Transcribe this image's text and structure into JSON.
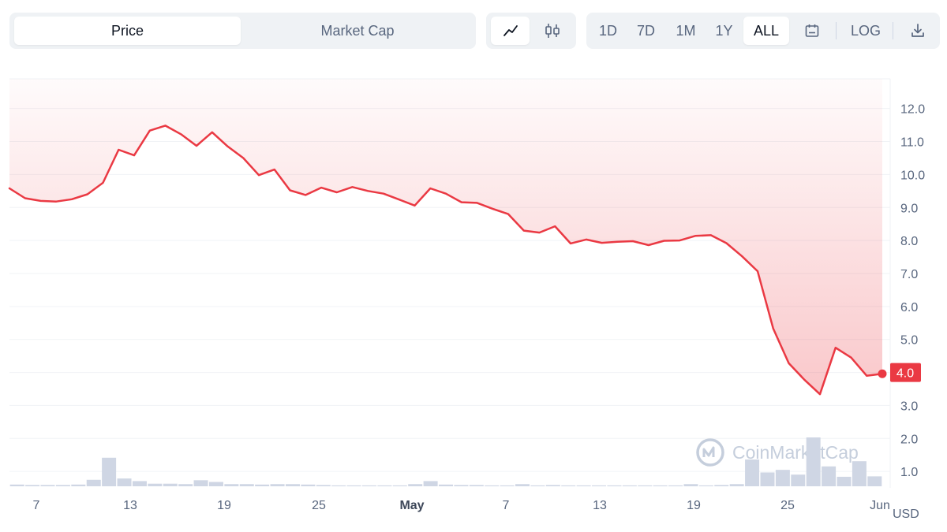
{
  "toolbar": {
    "metric_tabs": [
      {
        "label": "Price",
        "active": true
      },
      {
        "label": "Market Cap",
        "active": false
      }
    ],
    "chart_types": [
      {
        "icon": "line-chart-icon",
        "active": true
      },
      {
        "icon": "candlestick-chart-icon",
        "active": false
      }
    ],
    "ranges": [
      {
        "label": "1D",
        "active": false
      },
      {
        "label": "7D",
        "active": false
      },
      {
        "label": "1M",
        "active": false
      },
      {
        "label": "1Y",
        "active": false
      },
      {
        "label": "ALL",
        "active": true
      }
    ],
    "calendar_icon": "calendar-icon",
    "log_label": "LOG",
    "download_icon": "download-icon"
  },
  "watermark": "CoinMarketCap",
  "colors": {
    "line": "#ea3943",
    "volume": "#cfd6e4",
    "active_bg": "#ffffff",
    "toolbar_bg": "#eff2f5"
  },
  "chart_data": {
    "type": "area",
    "ylim": [
      0.55,
      12.9
    ],
    "y_ticks": [
      "1.0",
      "2.0",
      "3.0",
      "4.0",
      "5.0",
      "6.0",
      "7.0",
      "8.0",
      "9.0",
      "10.0",
      "11.0",
      "12.0"
    ],
    "y_unit": "USD",
    "x_ticks": [
      {
        "label": "7",
        "bold": false
      },
      {
        "label": "13",
        "bold": false
      },
      {
        "label": "19",
        "bold": false
      },
      {
        "label": "25",
        "bold": false
      },
      {
        "label": "May",
        "bold": true
      },
      {
        "label": "7",
        "bold": false
      },
      {
        "label": "13",
        "bold": false
      },
      {
        "label": "19",
        "bold": false
      },
      {
        "label": "25",
        "bold": false
      },
      {
        "label": "Jun",
        "bold": false
      }
    ],
    "current_price": "4.0",
    "grid": true,
    "series": [
      {
        "values": [
          9.58,
          9.28,
          9.2,
          9.18,
          9.25,
          9.4,
          9.75,
          10.75,
          10.58,
          11.33,
          11.48,
          11.22,
          10.87,
          11.28,
          10.85,
          10.5,
          9.98,
          10.15,
          9.52,
          9.38,
          9.6,
          9.46,
          9.62,
          9.5,
          9.42,
          9.24,
          9.06,
          9.58,
          9.42,
          9.16,
          9.14,
          8.96,
          8.8,
          8.3,
          8.24,
          8.43,
          7.91,
          8.03,
          7.93,
          7.96,
          7.98,
          7.86,
          7.99,
          8.0,
          8.14,
          8.16,
          7.92,
          7.52,
          7.07,
          5.33,
          4.28,
          3.78,
          3.34,
          4.75,
          4.45,
          3.9,
          3.96
        ]
      }
    ],
    "volume": [
      0.04,
      0.03,
      0.03,
      0.03,
      0.04,
      0.15,
      0.66,
      0.18,
      0.12,
      0.06,
      0.06,
      0.05,
      0.14,
      0.1,
      0.05,
      0.05,
      0.04,
      0.05,
      0.05,
      0.04,
      0.03,
      0.02,
      0.02,
      0.02,
      0.02,
      0.02,
      0.05,
      0.12,
      0.04,
      0.03,
      0.03,
      0.02,
      0.02,
      0.05,
      0.02,
      0.03,
      0.02,
      0.02,
      0.02,
      0.02,
      0.02,
      0.02,
      0.02,
      0.02,
      0.05,
      0.02,
      0.03,
      0.05,
      0.62,
      0.32,
      0.38,
      0.27,
      1.13,
      0.46,
      0.22,
      0.58,
      0.23
    ]
  }
}
